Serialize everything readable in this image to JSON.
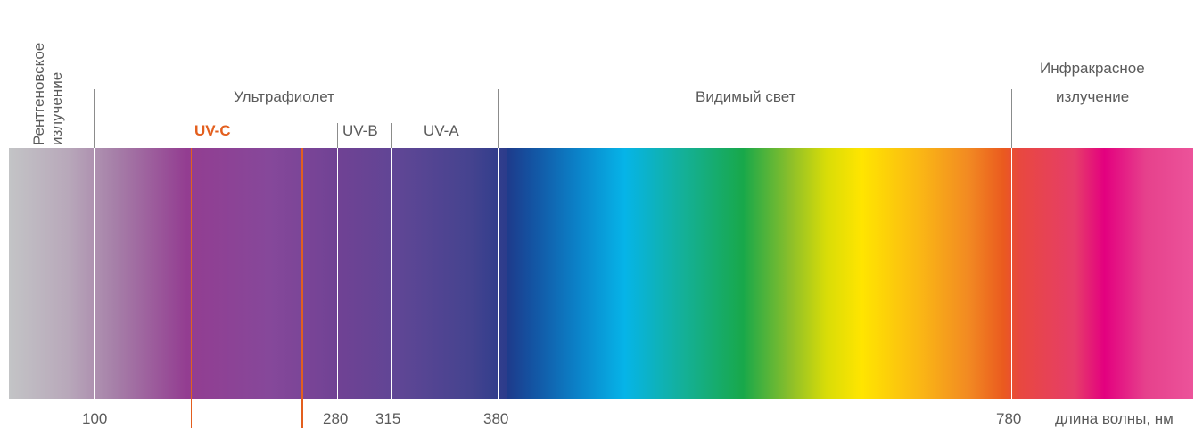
{
  "regions": {
    "xray_line1": "Рентгеновское",
    "xray_line2": "излучение",
    "ultraviolet": "Ультрафиолет",
    "uvc": "UV-C",
    "uvb": "UV-B",
    "uva": "UV-A",
    "visible": "Видимый свет",
    "infrared_line1": "Инфракрасное",
    "infrared_line2": "излучение"
  },
  "ticks": {
    "t100": "100",
    "t280": "280",
    "t315": "315",
    "t380": "380",
    "t780": "780"
  },
  "axis_label": "длина волны, нм",
  "colors": {
    "uvc_accent": "#e35f1e",
    "text": "#5a5a5a",
    "divider": "#8c8c8c"
  }
}
